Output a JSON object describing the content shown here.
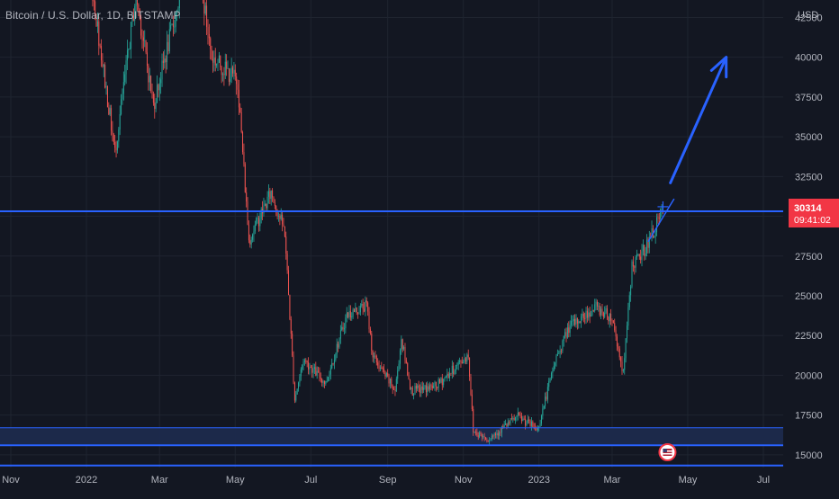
{
  "header": {
    "symbol_title": "Bitcoin / U.S. Dollar, 1D, BITSTAMP"
  },
  "colors": {
    "background": "#131722",
    "grid": "#1f2430",
    "up_candle": "#26a69a",
    "down_candle": "#ef5350",
    "horizontal_line": "#2962ff",
    "arrow": "#2962ff",
    "demand_zone": "#1c2a4d",
    "price_tag": "#f23645",
    "axis_text": "#b2b5be"
  },
  "chart_data": {
    "type": "candlestick",
    "title": "Bitcoin / U.S. Dollar, 1D, BITSTAMP",
    "currency_label": "USD",
    "ylim": [
      14200,
      43600
    ],
    "y_ticks": [
      15000,
      17500,
      20000,
      22500,
      25000,
      27500,
      30000,
      32500,
      35000,
      37500,
      40000,
      42500
    ],
    "x_ticks": [
      "Nov",
      "2022",
      "Mar",
      "May",
      "Jul",
      "Sep",
      "Nov",
      "2023",
      "Mar",
      "May",
      "Jul"
    ],
    "last_price": "30314",
    "countdown": "09:41:02",
    "grid": true,
    "price_path": [
      {
        "date": "2021-11-10",
        "price": 67000
      },
      {
        "date": "2021-12-01",
        "price": 57000
      },
      {
        "date": "2022-01-01",
        "price": 47000
      },
      {
        "date": "2022-01-24",
        "price": 34000
      },
      {
        "date": "2022-02-10",
        "price": 44000
      },
      {
        "date": "2022-02-24",
        "price": 37000
      },
      {
        "date": "2022-03-29",
        "price": 47500
      },
      {
        "date": "2022-04-12",
        "price": 40000
      },
      {
        "date": "2022-05-03",
        "price": 38500
      },
      {
        "date": "2022-05-12",
        "price": 28500
      },
      {
        "date": "2022-05-30",
        "price": 31500
      },
      {
        "date": "2022-06-10",
        "price": 29000
      },
      {
        "date": "2022-06-18",
        "price": 18500
      },
      {
        "date": "2022-06-25",
        "price": 21000
      },
      {
        "date": "2022-07-13",
        "price": 19500
      },
      {
        "date": "2022-07-30",
        "price": 23800
      },
      {
        "date": "2022-08-15",
        "price": 24400
      },
      {
        "date": "2022-08-20",
        "price": 21200
      },
      {
        "date": "2022-09-07",
        "price": 19000
      },
      {
        "date": "2022-09-12",
        "price": 22300
      },
      {
        "date": "2022-09-20",
        "price": 19000
      },
      {
        "date": "2022-10-10",
        "price": 19300
      },
      {
        "date": "2022-11-05",
        "price": 21300
      },
      {
        "date": "2022-11-09",
        "price": 16500
      },
      {
        "date": "2022-11-21",
        "price": 16000
      },
      {
        "date": "2022-12-15",
        "price": 17400
      },
      {
        "date": "2022-12-31",
        "price": 16600
      },
      {
        "date": "2023-01-14",
        "price": 20900
      },
      {
        "date": "2023-01-25",
        "price": 23000
      },
      {
        "date": "2023-02-16",
        "price": 24300
      },
      {
        "date": "2023-03-01",
        "price": 23600
      },
      {
        "date": "2023-03-10",
        "price": 20100
      },
      {
        "date": "2023-03-17",
        "price": 26900
      },
      {
        "date": "2023-03-24",
        "price": 27500
      },
      {
        "date": "2023-03-31",
        "price": 28500
      },
      {
        "date": "2023-04-11",
        "price": 30314
      }
    ],
    "annotations": [
      {
        "type": "horizontal_line",
        "price": 30314
      },
      {
        "type": "horizontal_line",
        "price": 15600
      },
      {
        "type": "horizontal_line",
        "price": 14330
      },
      {
        "type": "zone",
        "from": 15650,
        "to": 16700
      },
      {
        "type": "arrow",
        "from": {
          "date": "2023-04-17",
          "price": 32100
        },
        "to": {
          "date": "2023-06-01",
          "price": 40000
        }
      }
    ]
  }
}
